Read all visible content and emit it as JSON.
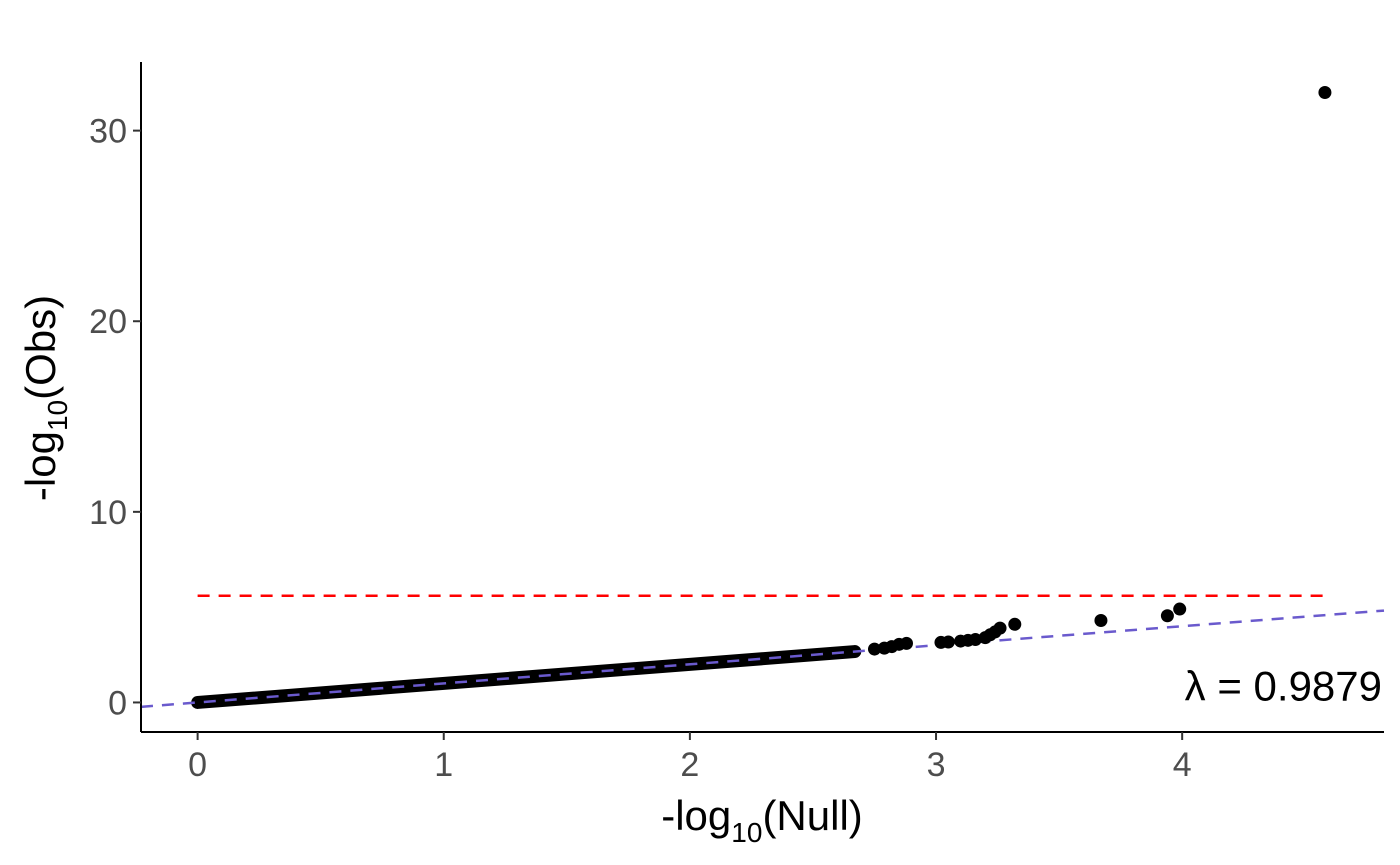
{
  "chart_data": {
    "type": "scatter",
    "title": "",
    "xlabel": {
      "prefix": "-log",
      "subscript": "10",
      "suffix": "(Null)"
    },
    "ylabel": {
      "prefix": "-log",
      "subscript": "10",
      "suffix": "(Obs)"
    },
    "xlim": [
      -0.23,
      4.82
    ],
    "ylim": [
      -1.55,
      33.6
    ],
    "x_ticks": [
      0,
      1,
      2,
      3,
      4
    ],
    "y_ticks": [
      0,
      10,
      20,
      30
    ],
    "x_tick_labels": [
      "0",
      "1",
      "2",
      "3",
      "4"
    ],
    "y_tick_labels": [
      "0",
      "10",
      "20",
      "30"
    ],
    "grid": false,
    "legend": "none",
    "colors": {
      "points": "#000000",
      "threshold": "#ff0000",
      "expected": "#6a5acd",
      "axis": "#000000",
      "tick_text": "#4d4d4d"
    },
    "dense_band": {
      "x_from": 0.0,
      "x_to": 2.67,
      "slope": 1.0
    },
    "points": [
      {
        "x": 2.75,
        "y": 2.8
      },
      {
        "x": 2.79,
        "y": 2.85
      },
      {
        "x": 2.82,
        "y": 2.93
      },
      {
        "x": 2.85,
        "y": 3.05
      },
      {
        "x": 2.88,
        "y": 3.1
      },
      {
        "x": 3.02,
        "y": 3.15
      },
      {
        "x": 3.05,
        "y": 3.17
      },
      {
        "x": 3.1,
        "y": 3.22
      },
      {
        "x": 3.13,
        "y": 3.26
      },
      {
        "x": 3.16,
        "y": 3.3
      },
      {
        "x": 3.2,
        "y": 3.4
      },
      {
        "x": 3.22,
        "y": 3.55
      },
      {
        "x": 3.24,
        "y": 3.7
      },
      {
        "x": 3.26,
        "y": 3.9
      },
      {
        "x": 3.32,
        "y": 4.1
      },
      {
        "x": 3.67,
        "y": 4.3
      },
      {
        "x": 3.94,
        "y": 4.55
      },
      {
        "x": 3.99,
        "y": 4.9
      },
      {
        "x": 4.58,
        "y": 32.0
      }
    ],
    "reference_lines": [
      {
        "kind": "threshold",
        "y": 5.6,
        "x_from": 0.0,
        "x_to": 4.58,
        "style": "dashed",
        "color": "#ff0000"
      },
      {
        "kind": "expected",
        "slope": 1.0,
        "intercept": 0.0,
        "x_from": -0.23,
        "x_to": 4.82,
        "style": "dashed",
        "color": "#6a5acd"
      }
    ],
    "annotation": {
      "text": "λ = 0.9879",
      "x": 4.82,
      "y": 0.1
    }
  }
}
